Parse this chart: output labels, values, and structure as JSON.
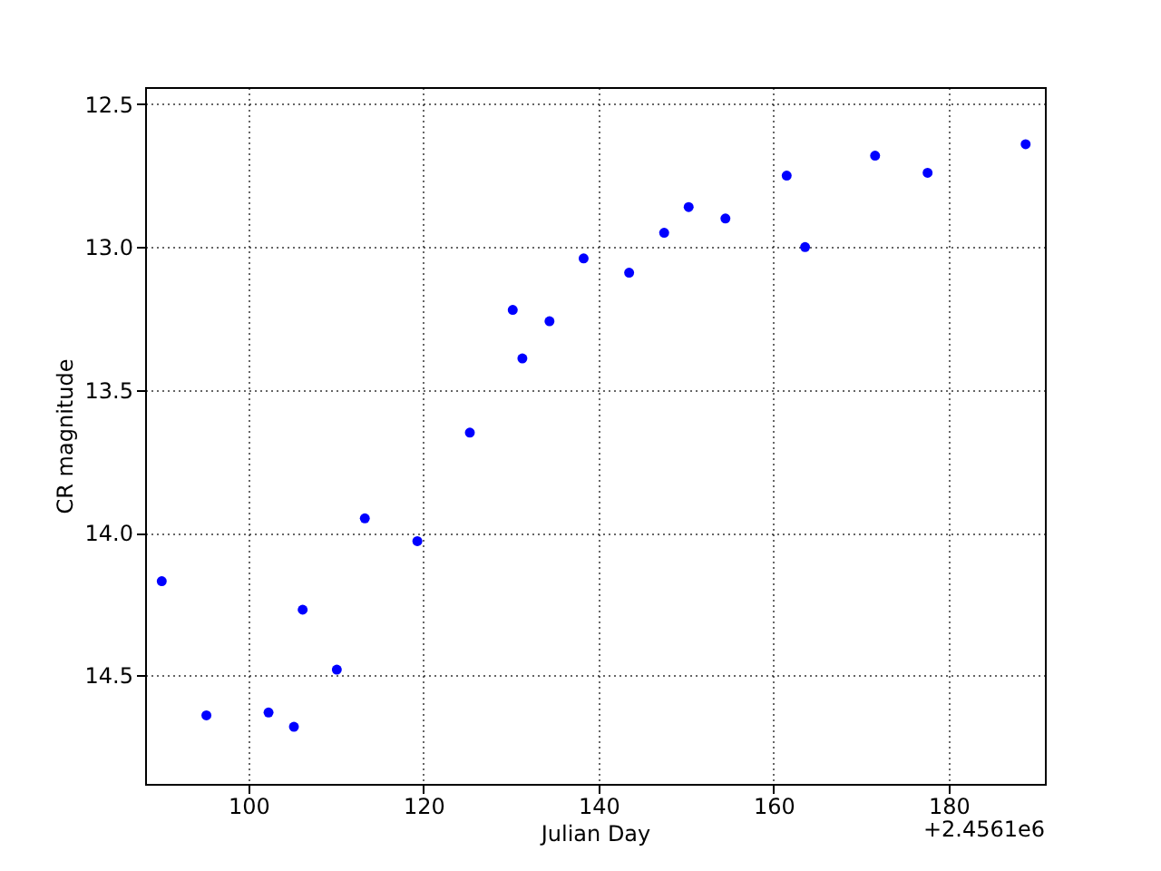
{
  "chart_data": {
    "type": "scatter",
    "xlabel": "Julian Day",
    "ylabel": "CR magnitude",
    "annotations": [
      "+2.4561e6"
    ],
    "x": [
      90.1,
      95.2,
      102.3,
      105.2,
      106.2,
      110.1,
      113.3,
      119.3,
      125.3,
      130.2,
      131.3,
      134.4,
      138.3,
      143.5,
      147.5,
      150.3,
      154.5,
      161.5,
      163.6,
      171.6,
      177.6,
      188.8
    ],
    "series": [
      {
        "color": "#0000ff",
        "values": [
          14.17,
          14.64,
          14.63,
          14.68,
          14.27,
          14.48,
          13.95,
          14.03,
          13.65,
          13.22,
          13.39,
          13.26,
          13.04,
          13.09,
          12.95,
          12.86,
          12.9,
          12.75,
          13.0,
          12.68,
          12.74,
          12.64
        ]
      }
    ],
    "xlim": [
      88.2,
      191
    ],
    "xticks": [
      100,
      120,
      140,
      160,
      180
    ],
    "ylim": [
      14.88,
      12.44
    ],
    "yticks": [
      {
        "value": 12.5,
        "label": "12.5"
      },
      {
        "value": 13.0,
        "label": "13.0"
      },
      {
        "value": 13.5,
        "label": "13.5"
      },
      {
        "value": 14.0,
        "label": "14.0"
      },
      {
        "value": 14.5,
        "label": "14.5"
      }
    ],
    "grid": true,
    "marker": "circle",
    "legend": false
  }
}
